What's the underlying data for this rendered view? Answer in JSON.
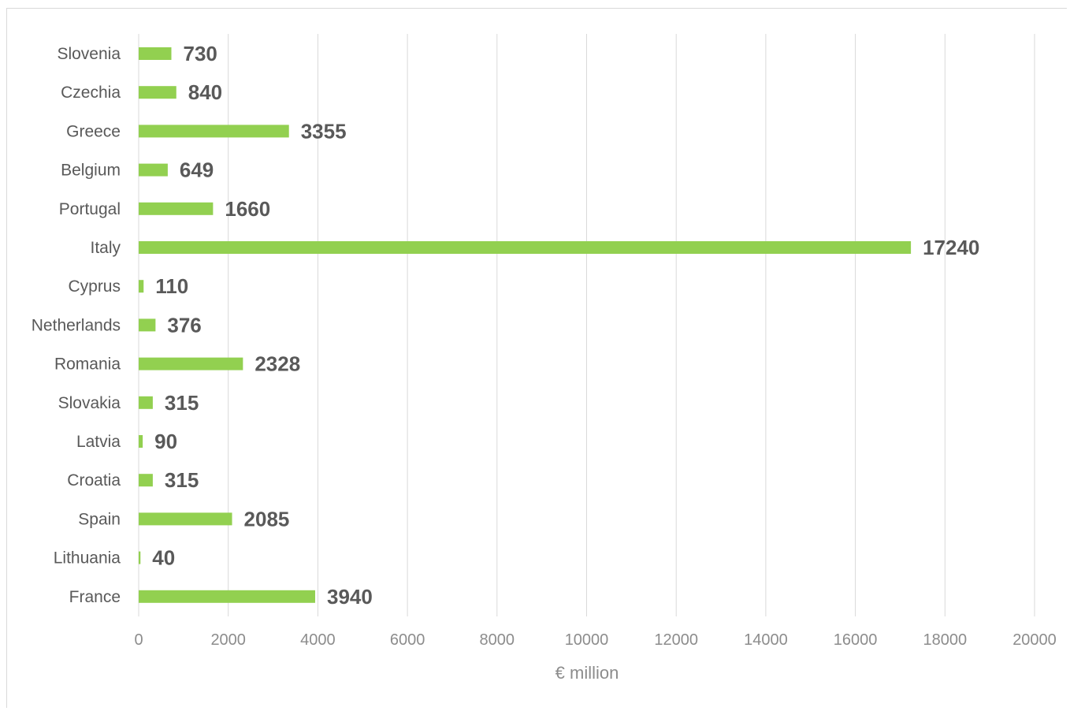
{
  "chart_data": {
    "type": "bar",
    "orientation": "horizontal",
    "categories": [
      "Slovenia",
      "Czechia",
      "Greece",
      "Belgium",
      "Portugal",
      "Italy",
      "Cyprus",
      "Netherlands",
      "Romania",
      "Slovakia",
      "Latvia",
      "Croatia",
      "Spain",
      "Lithuania",
      "France"
    ],
    "values": [
      730,
      840,
      3355,
      649,
      1660,
      17240,
      110,
      376,
      2328,
      315,
      90,
      315,
      2085,
      40,
      3940
    ],
    "xlabel": "€ million",
    "xlim": [
      0,
      20000
    ],
    "xticks": [
      0,
      2000,
      4000,
      6000,
      8000,
      10000,
      12000,
      14000,
      16000,
      18000,
      20000
    ],
    "bar_color": "#92d050",
    "grid": "vertical",
    "legend": "none",
    "data_labels": true
  }
}
